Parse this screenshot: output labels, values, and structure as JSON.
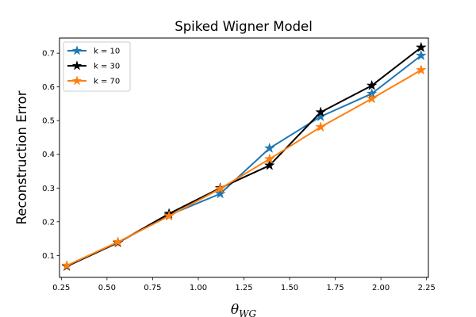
{
  "chart_data": {
    "type": "line",
    "title": "Spiked Wigner Model",
    "xlabel_base": "θ",
    "xlabel_sub": "WG",
    "ylabel": "Reconstruction Error",
    "xlim": [
      0.24,
      2.26
    ],
    "ylim": [
      0.035,
      0.745
    ],
    "xticks": [
      "0.25",
      "0.50",
      "0.75",
      "1.00",
      "1.25",
      "1.50",
      "1.75",
      "2.00",
      "2.25"
    ],
    "yticks": [
      "0.1",
      "0.2",
      "0.3",
      "0.4",
      "0.5",
      "0.6",
      "0.7"
    ],
    "grid": false,
    "legend_position": "upper-left",
    "marker": "star",
    "x": [
      0.28,
      0.56,
      0.84,
      1.12,
      1.39,
      1.67,
      1.95,
      2.22
    ],
    "series": [
      {
        "name": "k = 10",
        "color": "#1f77b4",
        "values": [
          0.068,
          0.138,
          0.22,
          0.283,
          0.418,
          0.512,
          0.58,
          0.693
        ]
      },
      {
        "name": "k = 30",
        "color": "#000000",
        "values": [
          0.068,
          0.138,
          0.224,
          0.3,
          0.367,
          0.525,
          0.604,
          0.717
        ]
      },
      {
        "name": "k = 70",
        "color": "#ff7f0e",
        "values": [
          0.07,
          0.14,
          0.217,
          0.298,
          0.386,
          0.481,
          0.565,
          0.65
        ]
      }
    ]
  }
}
